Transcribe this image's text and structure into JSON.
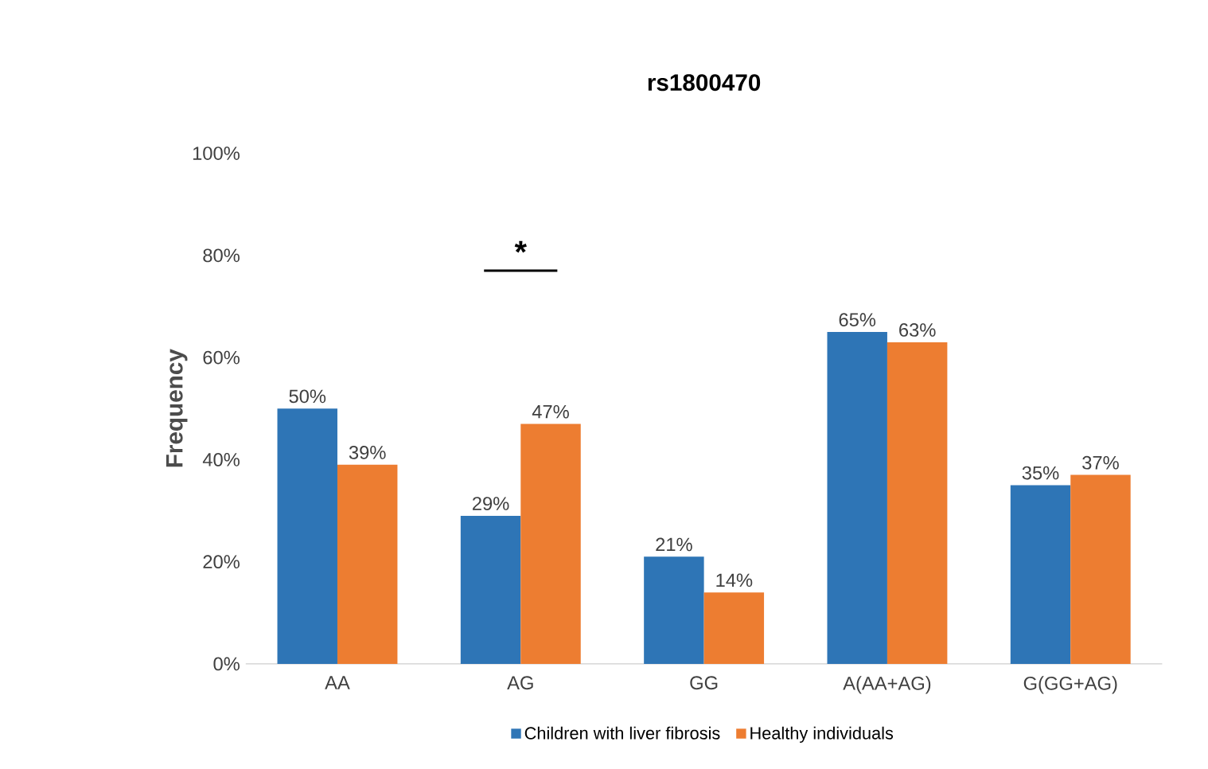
{
  "chart_data": {
    "type": "bar",
    "title": "rs1800470",
    "ylabel": "Frequency",
    "categories": [
      "AA",
      "AG",
      "GG",
      "A(AA+AG)",
      "G(GG+AG)"
    ],
    "series": [
      {
        "name": "Children with liver fibrosis",
        "color": "#2e75b6",
        "values": [
          50,
          29,
          21,
          65,
          35
        ],
        "value_labels": [
          "50%",
          "29%",
          "21%",
          "65%",
          "35%"
        ]
      },
      {
        "name": "Healthy individuals",
        "color": "#ed7d31",
        "values": [
          39,
          47,
          14,
          63,
          37
        ],
        "value_labels": [
          "39%",
          "47%",
          "14%",
          "63%",
          "37%"
        ]
      }
    ],
    "ylim": [
      0,
      100
    ],
    "yticks": [
      {
        "value": 0,
        "label": "0%"
      },
      {
        "value": 20,
        "label": "20%"
      },
      {
        "value": 40,
        "label": "40%"
      },
      {
        "value": 60,
        "label": "60%"
      },
      {
        "value": 80,
        "label": "80%"
      },
      {
        "value": 100,
        "label": "100%"
      }
    ],
    "annotations": [
      "*"
    ],
    "grid": false,
    "legend": "bottom"
  }
}
